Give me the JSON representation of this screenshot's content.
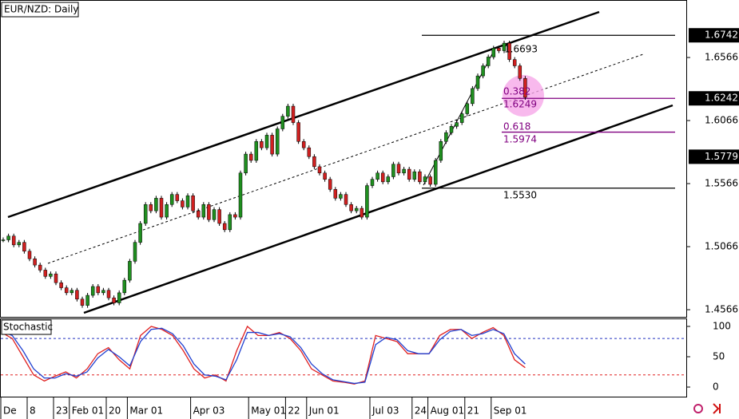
{
  "chart_data": [
    {
      "type": "candlestick",
      "title": "EUR/NZD: Daily",
      "categories": [
        "De",
        null,
        null,
        null,
        null,
        "8",
        null,
        null,
        null,
        null,
        "23",
        null,
        null,
        "Feb 01",
        null,
        null,
        null,
        null,
        null,
        null,
        "20",
        null,
        null,
        null,
        "Mar 01",
        null,
        null,
        null,
        null,
        null,
        null,
        null,
        null,
        null,
        null,
        null,
        "Apr 03",
        null,
        null,
        null,
        null,
        null,
        null,
        null,
        null,
        null,
        null,
        "May 01",
        null,
        null,
        null,
        null,
        null,
        null,
        "22",
        null,
        null,
        null,
        "Jun 01",
        null,
        null,
        null,
        null,
        null,
        null,
        null,
        null,
        null,
        null,
        null,
        "Jul 03",
        null,
        null,
        null,
        null,
        null,
        null,
        null,
        "24",
        null,
        null,
        "Aug 01",
        null,
        null,
        null,
        null,
        null,
        null,
        "21",
        null,
        null,
        null,
        null,
        "Sep 01",
        null,
        null,
        null,
        null,
        null,
        null
      ],
      "close": [
        1.512,
        1.515,
        1.508,
        1.51,
        1.503,
        1.497,
        1.492,
        1.488,
        1.483,
        1.485,
        1.478,
        1.474,
        1.47,
        1.472,
        1.465,
        1.46,
        1.468,
        1.475,
        1.47,
        1.472,
        1.466,
        1.462,
        1.47,
        1.48,
        1.495,
        1.51,
        1.525,
        1.54,
        1.535,
        1.545,
        1.53,
        1.54,
        1.548,
        1.543,
        1.538,
        1.547,
        1.535,
        1.53,
        1.54,
        1.528,
        1.536,
        1.525,
        1.52,
        1.532,
        1.53,
        1.565,
        1.58,
        1.575,
        1.59,
        1.585,
        1.595,
        1.58,
        1.6,
        1.61,
        1.618,
        1.605,
        1.59,
        1.585,
        1.578,
        1.57,
        1.565,
        1.56,
        1.552,
        1.545,
        1.548,
        1.54,
        1.535,
        1.537,
        1.53,
        1.555,
        1.56,
        1.565,
        1.558,
        1.562,
        1.572,
        1.565,
        1.568,
        1.56,
        1.566,
        1.558,
        1.562,
        1.556,
        1.575,
        1.59,
        1.597,
        1.602,
        1.605,
        1.612,
        1.62,
        1.632,
        1.642,
        1.65,
        1.657,
        1.664,
        1.662,
        1.668,
        1.655,
        1.65,
        1.64,
        1.625
      ],
      "up_color": "#1f8f1f",
      "down_color": "#d02020",
      "ylim": [
        1.4503,
        1.7022
      ],
      "yticks": [
        1.4566,
        1.5066,
        1.5566,
        1.6066,
        1.6566
      ],
      "price_tags": [
        1.6742,
        1.6242,
        1.5779
      ],
      "levels": [
        {
          "value": 1.6742,
          "color": "#000000"
        },
        {
          "value": 1.6242,
          "color": "#800080"
        },
        {
          "value": 1.5974,
          "color": "#800080"
        },
        {
          "value": 1.553,
          "color": "#000000"
        }
      ],
      "annotations": [
        "1.6693",
        "0.382",
        "1.6249",
        "0.618",
        "1.5974",
        "1.5530"
      ]
    },
    {
      "type": "line",
      "title": "Stochastic",
      "series": [
        {
          "color": "#e02020",
          "values": [
            90,
            80,
            50,
            20,
            10,
            18,
            25,
            15,
            30,
            55,
            65,
            45,
            30,
            85,
            100,
            95,
            85,
            60,
            30,
            15,
            20,
            10,
            60,
            100,
            85,
            85,
            90,
            80,
            60,
            30,
            20,
            10,
            8,
            5,
            10,
            85,
            80,
            75,
            55,
            55,
            55,
            85,
            95,
            95,
            80,
            90,
            98,
            85,
            45,
            32
          ]
        },
        {
          "color": "#2040d0",
          "values": [
            92,
            85,
            60,
            30,
            15,
            15,
            22,
            18,
            25,
            48,
            62,
            50,
            35,
            75,
            95,
            97,
            88,
            68,
            38,
            20,
            18,
            12,
            45,
            90,
            90,
            85,
            88,
            83,
            65,
            38,
            22,
            12,
            9,
            6,
            8,
            70,
            82,
            78,
            60,
            55,
            55,
            78,
            92,
            95,
            85,
            88,
            95,
            88,
            55,
            38
          ]
        }
      ],
      "ylim": [
        -17.1,
        111.8
      ],
      "yticks": [
        100,
        50,
        0
      ],
      "levels": [
        {
          "value": 80,
          "color": "#2030c0"
        },
        {
          "value": 20,
          "color": "#e02020"
        }
      ]
    }
  ]
}
